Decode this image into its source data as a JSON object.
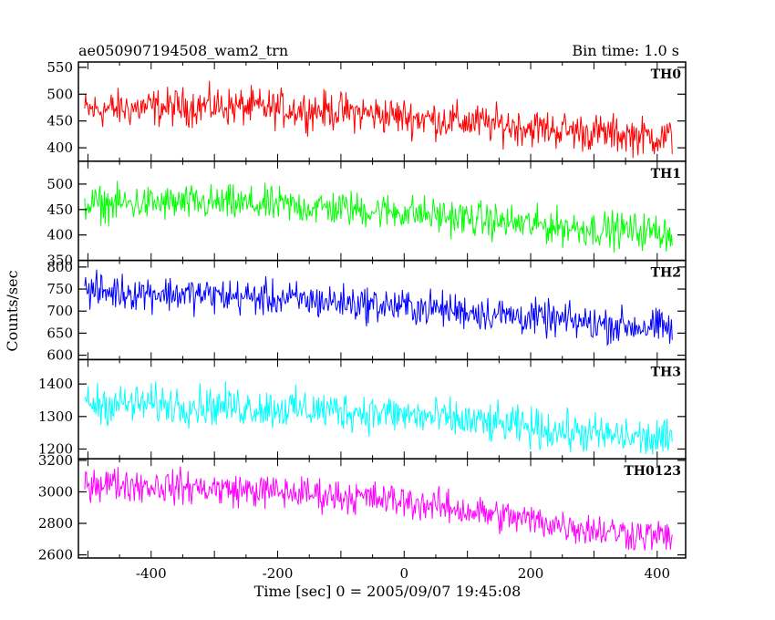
{
  "header": {
    "title": "ae050907194508_wam2_trn",
    "bin_time": "Bin time: 1.0 s"
  },
  "chart_data": {
    "type": "line",
    "title": "ae050907194508_wam2_trn",
    "subtitle": "Bin time: 1.0 s",
    "xlabel": "Time [sec] 0 = 2005/09/07 19:45:08",
    "ylabel": "Counts/sec",
    "xlim": [
      -515,
      445
    ],
    "x_range": [
      -505,
      425
    ],
    "bin_seconds": 1.0,
    "x_ticks": [
      -400,
      -200,
      0,
      200,
      400
    ],
    "grid": false,
    "series": [
      {
        "name": "TH0",
        "color": "#ff0000",
        "ylim": [
          375,
          560
        ],
        "y_ticks": [
          400,
          450,
          500,
          550
        ],
        "x_points": [
          -505,
          -400,
          -300,
          -200,
          -100,
          0,
          100,
          200,
          300,
          425
        ],
        "level": [
          470,
          475,
          478,
          473,
          468,
          458,
          448,
          438,
          428,
          418
        ],
        "spread": 28
      },
      {
        "name": "TH1",
        "color": "#00ff00",
        "ylim": [
          350,
          545
        ],
        "y_ticks": [
          350,
          400,
          450,
          500
        ],
        "x_points": [
          -505,
          -400,
          -300,
          -200,
          -100,
          0,
          100,
          200,
          300,
          425
        ],
        "level": [
          460,
          462,
          462,
          458,
          452,
          445,
          432,
          420,
          412,
          405
        ],
        "spread": 28
      },
      {
        "name": "TH2",
        "color": "#0000ff",
        "ylim": [
          590,
          815
        ],
        "y_ticks": [
          600,
          650,
          700,
          750,
          800
        ],
        "x_points": [
          -505,
          -400,
          -300,
          -200,
          -100,
          0,
          100,
          200,
          300,
          425
        ],
        "level": [
          745,
          742,
          735,
          728,
          720,
          710,
          700,
          685,
          672,
          660
        ],
        "spread": 32
      },
      {
        "name": "TH3",
        "color": "#00ffff",
        "ylim": [
          1170,
          1475
        ],
        "y_ticks": [
          1200,
          1300,
          1400
        ],
        "x_points": [
          -505,
          -400,
          -300,
          -200,
          -100,
          0,
          100,
          200,
          300,
          425
        ],
        "level": [
          1340,
          1338,
          1333,
          1325,
          1318,
          1305,
          1285,
          1265,
          1245,
          1225
        ],
        "spread": 48
      },
      {
        "name": "TH0123",
        "color": "#ff00ff",
        "ylim": [
          2580,
          3210
        ],
        "y_ticks": [
          2600,
          2800,
          3000,
          3200
        ],
        "x_points": [
          -505,
          -400,
          -300,
          -200,
          -100,
          0,
          100,
          200,
          300,
          425
        ],
        "level": [
          3060,
          3040,
          3020,
          3000,
          2975,
          2940,
          2880,
          2820,
          2760,
          2710
        ],
        "spread": 85
      }
    ]
  }
}
